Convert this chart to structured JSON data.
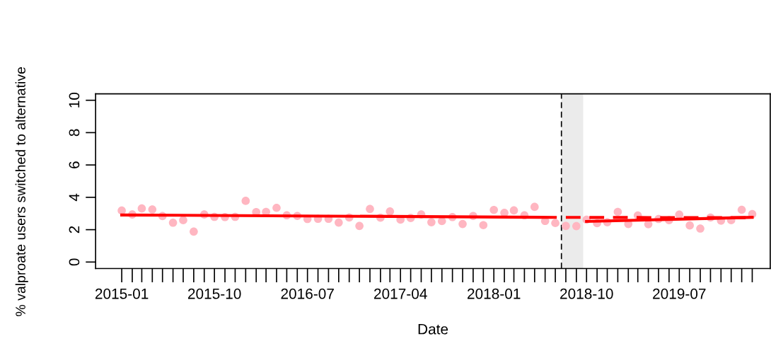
{
  "chart_data": {
    "type": "scatter",
    "xlabel": "Date",
    "ylabel": "% valproate users switched to alternative",
    "x": [
      "2015-01",
      "2015-02",
      "2015-03",
      "2015-04",
      "2015-05",
      "2015-06",
      "2015-07",
      "2015-08",
      "2015-09",
      "2015-10",
      "2015-11",
      "2015-12",
      "2016-01",
      "2016-02",
      "2016-03",
      "2016-04",
      "2016-05",
      "2016-06",
      "2016-07",
      "2016-08",
      "2016-09",
      "2016-10",
      "2016-11",
      "2016-12",
      "2017-01",
      "2017-02",
      "2017-03",
      "2017-04",
      "2017-05",
      "2017-06",
      "2017-07",
      "2017-08",
      "2017-09",
      "2017-10",
      "2017-11",
      "2017-12",
      "2018-01",
      "2018-02",
      "2018-03",
      "2018-04",
      "2018-05",
      "2018-06",
      "2018-07",
      "2018-08",
      "2018-09",
      "2018-10",
      "2018-11",
      "2018-12",
      "2019-01",
      "2019-02",
      "2019-03",
      "2019-04",
      "2019-05",
      "2019-06",
      "2019-07",
      "2019-08",
      "2019-09",
      "2019-10",
      "2019-11",
      "2019-12",
      "2020-01",
      "2020-02"
    ],
    "series": [
      {
        "color": "#ffb6c1",
        "marker": "circle",
        "values": [
          3.18,
          2.94,
          3.31,
          3.25,
          2.84,
          2.43,
          2.59,
          1.88,
          2.94,
          2.79,
          2.78,
          2.79,
          3.78,
          3.09,
          3.1,
          3.35,
          2.89,
          2.85,
          2.66,
          2.67,
          2.67,
          2.44,
          2.75,
          2.23,
          3.28,
          2.74,
          3.13,
          2.62,
          2.72,
          2.94,
          2.46,
          2.53,
          2.78,
          2.35,
          2.85,
          2.28,
          3.22,
          3.04,
          3.19,
          2.89,
          3.41,
          2.54,
          2.41,
          2.23,
          2.22,
          2.62,
          2.4,
          2.46,
          3.1,
          2.35,
          2.88,
          2.34,
          2.66,
          2.59,
          2.93,
          2.26,
          2.07,
          2.75,
          2.56,
          2.59,
          3.23,
          2.96
        ]
      },
      {
        "type": "line",
        "color": "#ff0000",
        "line_style": "solid",
        "x": [
          "2015-01",
          "2018-07"
        ],
        "values": [
          2.91,
          2.76
        ]
      },
      {
        "type": "line",
        "color": "#ff0000",
        "line_style": "dashed",
        "x": [
          "2018-08",
          "2020-02"
        ],
        "values": [
          2.76,
          2.74
        ]
      },
      {
        "type": "line",
        "color": "#ff0000",
        "line_style": "solid",
        "x": [
          "2018-10",
          "2020-02"
        ],
        "values": [
          2.51,
          2.76
        ]
      }
    ],
    "xlim": [
      "2014-10-16",
      "2020-03-25"
    ],
    "xticks": [
      {
        "value": "2015-01",
        "label": "2015-01"
      },
      {
        "value": "2015-10",
        "label": "2015-10"
      },
      {
        "value": "2016-07",
        "label": "2016-07"
      },
      {
        "value": "2017-04",
        "label": "2017-04"
      },
      {
        "value": "2018-01",
        "label": "2018-01"
      },
      {
        "value": "2018-10",
        "label": "2018-10"
      },
      {
        "value": "2019-07",
        "label": "2019-07"
      }
    ],
    "ylim": [
      -0.4,
      10.4
    ],
    "yticks": [
      0,
      2,
      4,
      6,
      8,
      10
    ],
    "bands": [
      {
        "axis": "x",
        "from": "2018-07-19",
        "to": "2018-09-21",
        "color": "#ebebeb"
      }
    ],
    "ref_lines": [
      {
        "axis": "x",
        "value": "2018-07-19",
        "color": "#000000",
        "line_style": "dashed"
      }
    ],
    "grid": false,
    "legend": false
  }
}
